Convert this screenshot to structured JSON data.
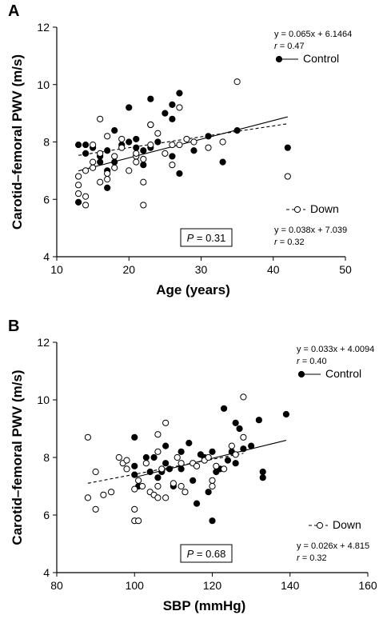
{
  "chart_data": [
    {
      "type": "scatter",
      "panel_label": "A",
      "xlabel": "Age (years)",
      "ylabel": "Carotid–femoral PWV (m/s)",
      "xlim": [
        10,
        50
      ],
      "ylim": [
        4,
        12
      ],
      "xticks": [
        10,
        20,
        30,
        40,
        50
      ],
      "yticks": [
        4,
        6,
        8,
        10,
        12
      ],
      "control_eq": "y = 0.065x + 6.1464",
      "control_r_label": "r",
      "control_r_value": " = 0.47",
      "control_legend": "Control",
      "down_legend": "Down",
      "down_eq": "y = 0.038x + 7.039",
      "down_r_label": "r",
      "down_r_value": " = 0.32",
      "p_label": "P",
      "p_value": " = 0.31",
      "control_fit": {
        "slope": 0.065,
        "intercept": 6.1464,
        "x_range": [
          13,
          42
        ]
      },
      "down_fit": {
        "slope": 0.038,
        "intercept": 7.039,
        "x_range": [
          13,
          42
        ]
      },
      "series": [
        {
          "name": "Control",
          "marker": "filled",
          "points": [
            [
              13,
              7.9
            ],
            [
              13,
              5.9
            ],
            [
              14,
              7.9
            ],
            [
              14,
              7.6
            ],
            [
              15,
              7.8
            ],
            [
              16,
              7.5
            ],
            [
              16,
              7.3
            ],
            [
              17,
              7.0
            ],
            [
              17,
              6.4
            ],
            [
              17,
              7.7
            ],
            [
              18,
              7.3
            ],
            [
              18,
              8.4
            ],
            [
              19,
              7.9
            ],
            [
              20,
              9.2
            ],
            [
              20,
              8.0
            ],
            [
              21,
              8.1
            ],
            [
              21,
              7.8
            ],
            [
              22,
              7.7
            ],
            [
              22,
              7.2
            ],
            [
              23,
              9.5
            ],
            [
              23,
              8.6
            ],
            [
              23,
              7.8
            ],
            [
              24,
              8.0
            ],
            [
              25,
              9.0
            ],
            [
              26,
              8.8
            ],
            [
              26,
              7.5
            ],
            [
              26,
              9.3
            ],
            [
              27,
              9.7
            ],
            [
              27,
              6.9
            ],
            [
              29,
              7.7
            ],
            [
              31,
              8.2
            ],
            [
              33,
              7.3
            ],
            [
              35,
              8.4
            ],
            [
              42,
              7.8
            ]
          ]
        },
        {
          "name": "Down",
          "marker": "open",
          "points": [
            [
              13,
              6.5
            ],
            [
              13,
              6.2
            ],
            [
              13,
              6.8
            ],
            [
              14,
              5.8
            ],
            [
              14,
              6.1
            ],
            [
              14,
              7.0
            ],
            [
              15,
              7.3
            ],
            [
              15,
              7.1
            ],
            [
              15,
              7.9
            ],
            [
              16,
              8.8
            ],
            [
              16,
              6.6
            ],
            [
              16,
              7.6
            ],
            [
              17,
              8.2
            ],
            [
              17,
              6.9
            ],
            [
              17,
              6.7
            ],
            [
              18,
              7.1
            ],
            [
              18,
              7.5
            ],
            [
              19,
              7.8
            ],
            [
              19,
              8.1
            ],
            [
              20,
              7.0
            ],
            [
              21,
              7.3
            ],
            [
              21,
              7.5
            ],
            [
              21,
              7.6
            ],
            [
              22,
              6.6
            ],
            [
              22,
              5.8
            ],
            [
              22,
              7.4
            ],
            [
              23,
              7.9
            ],
            [
              23,
              8.6
            ],
            [
              23,
              8.6
            ],
            [
              24,
              8.3
            ],
            [
              25,
              7.6
            ],
            [
              26,
              7.9
            ],
            [
              26,
              7.2
            ],
            [
              27,
              9.2
            ],
            [
              27,
              7.9
            ],
            [
              28,
              8.1
            ],
            [
              29,
              8.0
            ],
            [
              31,
              7.8
            ],
            [
              33,
              8.0
            ],
            [
              35,
              10.1
            ],
            [
              42,
              6.8
            ]
          ]
        }
      ]
    },
    {
      "type": "scatter",
      "panel_label": "B",
      "xlabel": "SBP (mmHg)",
      "ylabel": "Carotid–femoral PWV (m/s)",
      "xlim": [
        80,
        160
      ],
      "ylim": [
        4,
        12
      ],
      "xticks": [
        80,
        100,
        120,
        140,
        160
      ],
      "yticks": [
        4,
        6,
        8,
        10,
        12
      ],
      "control_eq": "y = 0.033x + 4.0094",
      "control_r_label": "r",
      "control_r_value": " = 0.40",
      "control_legend": "Control",
      "down_legend": "Down",
      "down_eq": "y = 0.026x + 4.815",
      "down_r_label": "r",
      "down_r_value": " = 0.32",
      "p_label": "P",
      "p_value": " = 0.68",
      "control_fit": {
        "slope": 0.033,
        "intercept": 4.0094,
        "x_range": [
          100,
          139
        ]
      },
      "down_fit": {
        "slope": 0.026,
        "intercept": 4.815,
        "x_range": [
          88,
          128
        ]
      },
      "series": [
        {
          "name": "Control",
          "marker": "filled",
          "points": [
            [
              100,
              8.7
            ],
            [
              100,
              7.7
            ],
            [
              100,
              7.4
            ],
            [
              101,
              7.0
            ],
            [
              103,
              8.0
            ],
            [
              104,
              7.5
            ],
            [
              105,
              8.0
            ],
            [
              106,
              7.3
            ],
            [
              107,
              7.5
            ],
            [
              108,
              8.4
            ],
            [
              108,
              7.8
            ],
            [
              109,
              7.6
            ],
            [
              110,
              7.0
            ],
            [
              112,
              8.2
            ],
            [
              112,
              7.6
            ],
            [
              114,
              8.5
            ],
            [
              115,
              7.2
            ],
            [
              116,
              6.4
            ],
            [
              117,
              8.1
            ],
            [
              118,
              8.0
            ],
            [
              119,
              6.8
            ],
            [
              120,
              5.8
            ],
            [
              120,
              8.2
            ],
            [
              121,
              7.5
            ],
            [
              122,
              7.6
            ],
            [
              123,
              9.7
            ],
            [
              124,
              7.9
            ],
            [
              125,
              8.2
            ],
            [
              126,
              9.2
            ],
            [
              126,
              7.8
            ],
            [
              127,
              9.0
            ],
            [
              128,
              8.3
            ],
            [
              130,
              8.4
            ],
            [
              132,
              9.3
            ],
            [
              133,
              7.5
            ],
            [
              133,
              7.3
            ],
            [
              139,
              9.5
            ]
          ]
        },
        {
          "name": "Down",
          "marker": "open",
          "points": [
            [
              88,
              8.7
            ],
            [
              88,
              6.6
            ],
            [
              90,
              7.5
            ],
            [
              90,
              6.2
            ],
            [
              92,
              6.7
            ],
            [
              94,
              6.8
            ],
            [
              96,
              8.0
            ],
            [
              97,
              7.8
            ],
            [
              98,
              7.9
            ],
            [
              98,
              7.6
            ],
            [
              100,
              6.2
            ],
            [
              100,
              5.8
            ],
            [
              100,
              6.9
            ],
            [
              101,
              5.8
            ],
            [
              101,
              7.2
            ],
            [
              102,
              7.0
            ],
            [
              103,
              7.8
            ],
            [
              104,
              6.8
            ],
            [
              105,
              6.7
            ],
            [
              106,
              8.8
            ],
            [
              106,
              8.2
            ],
            [
              106,
              7.0
            ],
            [
              106,
              6.6
            ],
            [
              107,
              7.6
            ],
            [
              108,
              9.2
            ],
            [
              108,
              6.6
            ],
            [
              110,
              7.1
            ],
            [
              111,
              8.0
            ],
            [
              112,
              7.0
            ],
            [
              112,
              7.8
            ],
            [
              113,
              6.8
            ],
            [
              115,
              7.8
            ],
            [
              116,
              7.7
            ],
            [
              118,
              7.9
            ],
            [
              119,
              8.0
            ],
            [
              120,
              7.0
            ],
            [
              120,
              7.2
            ],
            [
              121,
              7.7
            ],
            [
              123,
              7.6
            ],
            [
              125,
              8.4
            ],
            [
              126,
              8.1
            ],
            [
              128,
              10.1
            ],
            [
              128,
              8.7
            ]
          ]
        }
      ]
    }
  ]
}
